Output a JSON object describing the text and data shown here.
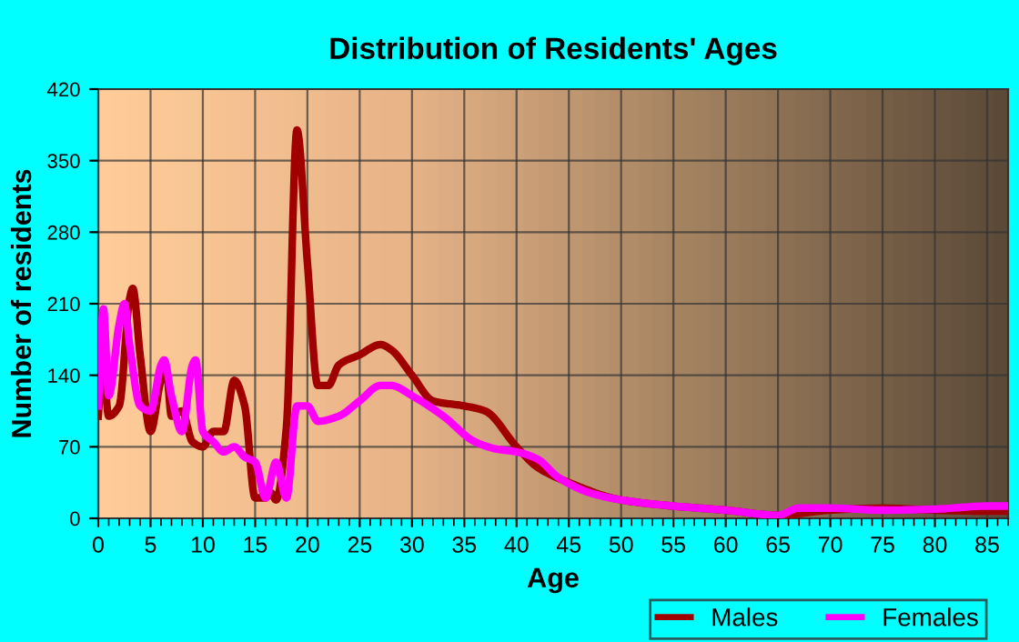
{
  "chart_data": {
    "type": "line",
    "title": "Distribution of Residents' Ages",
    "xlabel": "Age",
    "ylabel": "Number of residents",
    "xlim": [
      0,
      87
    ],
    "xticks": [
      0,
      5,
      10,
      15,
      20,
      25,
      30,
      35,
      40,
      45,
      50,
      55,
      60,
      65,
      70,
      75,
      80,
      85
    ],
    "ylim": [
      0,
      420
    ],
    "yticks": [
      0,
      70,
      140,
      210,
      280,
      350,
      420
    ],
    "grid": true,
    "legend": "bottom right",
    "marker": "none",
    "line_style": "solid",
    "series": [
      {
        "name": "Males",
        "color": "#a00000",
        "x": [
          0,
          0.4,
          1,
          2,
          3,
          3.3,
          4,
          5,
          6,
          6.5,
          7,
          8,
          9,
          10,
          11,
          12,
          13,
          14,
          15,
          16,
          16.5,
          17,
          18,
          19,
          20,
          21,
          22,
          23,
          25,
          27,
          28,
          30,
          32,
          35,
          37,
          40,
          42,
          45,
          50,
          55,
          60,
          65,
          70,
          75,
          80,
          85,
          87
        ],
        "values": [
          100,
          155,
          100,
          110,
          215,
          225,
          160,
          85,
          135,
          145,
          100,
          105,
          75,
          70,
          85,
          85,
          135,
          110,
          20,
          20,
          25,
          18,
          90,
          380,
          250,
          130,
          130,
          150,
          160,
          170,
          165,
          140,
          115,
          110,
          105,
          70,
          50,
          35,
          18,
          12,
          8,
          3,
          8,
          10,
          8,
          7,
          7
        ]
      },
      {
        "name": "Females",
        "color": "#ff00ff",
        "x": [
          0,
          0.5,
          1,
          2,
          2.5,
          3,
          4,
          5,
          6,
          6.3,
          7,
          8,
          9,
          9.3,
          10,
          11,
          12,
          13,
          14,
          15,
          16,
          17,
          18,
          19,
          20,
          21,
          23,
          25,
          27,
          28,
          30,
          33,
          36,
          38,
          40,
          42,
          44,
          47,
          50,
          55,
          60,
          65,
          67,
          70,
          75,
          80,
          85,
          87
        ],
        "values": [
          110,
          205,
          120,
          190,
          210,
          170,
          110,
          105,
          150,
          155,
          120,
          85,
          150,
          155,
          85,
          75,
          65,
          70,
          60,
          55,
          20,
          55,
          20,
          110,
          110,
          95,
          100,
          115,
          130,
          130,
          120,
          100,
          75,
          68,
          65,
          58,
          40,
          25,
          18,
          12,
          8,
          3,
          10,
          10,
          8,
          9,
          12,
          12
        ]
      }
    ]
  }
}
